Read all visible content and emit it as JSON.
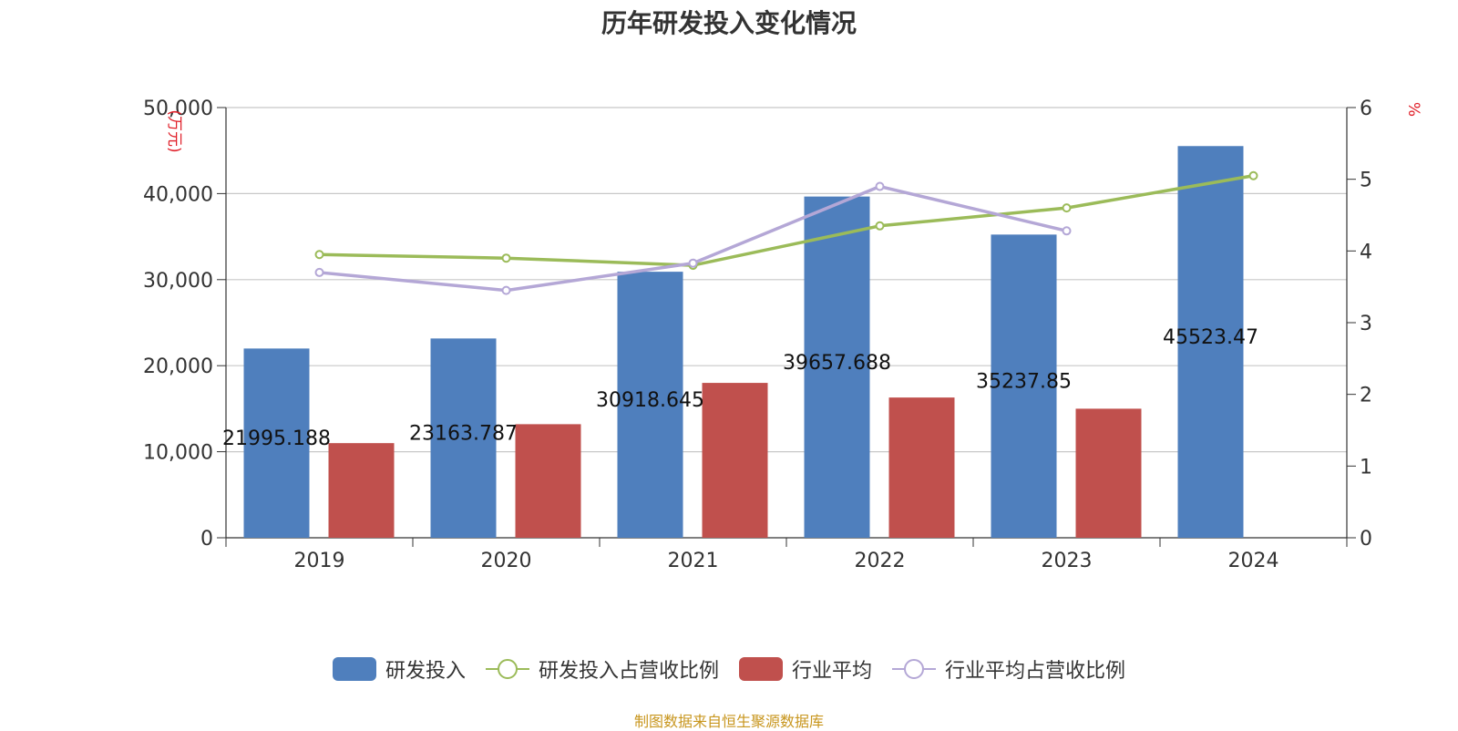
{
  "title": "历年研发投入变化情况",
  "source": "制图数据来自恒生聚源数据库",
  "chart_data": {
    "type": "bar",
    "title": "历年研发投入变化情况",
    "categories": [
      "2019",
      "2020",
      "2021",
      "2022",
      "2023",
      "2024"
    ],
    "y_left": {
      "label": "万元",
      "min": 0,
      "max": 50000,
      "ticks": [
        "0",
        "10,000",
        "20,000",
        "30,000",
        "40,000",
        "50,000"
      ],
      "tick_values": [
        0,
        10000,
        20000,
        30000,
        40000,
        50000
      ]
    },
    "y_right": {
      "label": "%",
      "min": 0,
      "max": 6,
      "ticks": [
        "0",
        "1",
        "2",
        "3",
        "4",
        "5",
        "6"
      ],
      "tick_values": [
        0,
        1,
        2,
        3,
        4,
        5,
        6
      ]
    },
    "series": [
      {
        "name": "研发投入",
        "kind": "bar",
        "axis": "left",
        "color": "#4f7fbd",
        "values": [
          21995.188,
          23163.787,
          30918.645,
          39657.688,
          35237.85,
          45523.47
        ],
        "labels": [
          "21995.188",
          "23163.787",
          "30918.645",
          "39657.688",
          "35237.85",
          "45523.47"
        ]
      },
      {
        "name": "研发投入占营收比例",
        "kind": "line",
        "axis": "right",
        "color": "#9bbb59",
        "values": [
          3.95,
          3.9,
          3.8,
          4.35,
          4.6,
          5.05
        ]
      },
      {
        "name": "行业平均",
        "kind": "bar",
        "axis": "left",
        "color": "#c0504d",
        "values": [
          11000,
          13200,
          18000,
          16300,
          15000,
          null
        ]
      },
      {
        "name": "行业平均占营收比例",
        "kind": "line",
        "axis": "right",
        "color": "#b4a7d6",
        "values": [
          3.7,
          3.45,
          3.83,
          4.9,
          4.28,
          null
        ]
      }
    ]
  },
  "legend": {
    "items": [
      {
        "label": "研发投入",
        "type": "bar",
        "color": "#4f7fbd"
      },
      {
        "label": "研发投入占营收比例",
        "type": "line",
        "color": "#9bbb59"
      },
      {
        "label": "行业平均",
        "type": "bar",
        "color": "#c0504d"
      },
      {
        "label": "行业平均占营收比例",
        "type": "line",
        "color": "#b4a7d6"
      }
    ]
  }
}
